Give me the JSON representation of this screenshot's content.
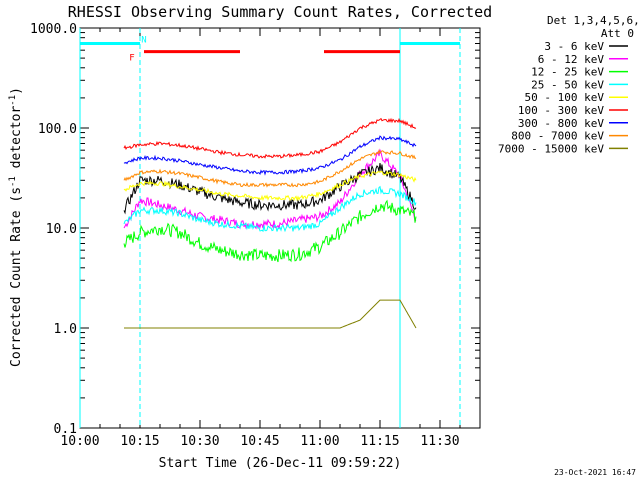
{
  "chart_data": {
    "type": "line",
    "title": "RHESSI Observing Summary Count Rates, Corrected",
    "xlabel": "Start Time (26-Dec-11 09:59:22)",
    "ylabel_main": "Corrected Count Rate (s",
    "ylabel_sup1": "-1",
    "ylabel_mid": " detector",
    "ylabel_sup2": "-1",
    "ylabel_end": ")",
    "yscale": "log",
    "ylim": [
      0.1,
      1000
    ],
    "xlim_minutes": [
      0,
      100
    ],
    "x_ticks": [
      {
        "m": 0,
        "label": "10:00"
      },
      {
        "m": 15,
        "label": "10:15"
      },
      {
        "m": 30,
        "label": "10:30"
      },
      {
        "m": 45,
        "label": "10:45"
      },
      {
        "m": 60,
        "label": "11:00"
      },
      {
        "m": 75,
        "label": "11:15"
      },
      {
        "m": 90,
        "label": "11:30"
      }
    ],
    "y_ticks": [
      {
        "v": 1000,
        "label": "1000.0"
      },
      {
        "v": 100,
        "label": "100.0"
      },
      {
        "v": 10,
        "label": "10.0"
      },
      {
        "v": 1,
        "label": "1.0"
      },
      {
        "v": 0.1,
        "label": "0.1"
      }
    ],
    "legend_header": [
      "Det 1,3,4,5,6,9,",
      "Att 0"
    ],
    "legend_position": "outside-right",
    "timestamp": "23-Oct-2021 16:47",
    "x_minutes": [
      11,
      15,
      20,
      25,
      30,
      35,
      40,
      45,
      50,
      55,
      60,
      65,
      70,
      75,
      80,
      84
    ],
    "series": [
      {
        "name": "3 - 6 keV",
        "color": "#000000",
        "noise": 0.12,
        "values": [
          15,
          30,
          30,
          27,
          23,
          20,
          18,
          17,
          17,
          17,
          19,
          26,
          34,
          40,
          32,
          16
        ]
      },
      {
        "name": "6 - 12 keV",
        "color": "#ff00ff",
        "noise": 0.1,
        "values": [
          10,
          19,
          17,
          15,
          13,
          12,
          11,
          11,
          11,
          12,
          13,
          18,
          35,
          55,
          33,
          12
        ]
      },
      {
        "name": "12 - 25 keV",
        "color": "#00ff00",
        "noise": 0.15,
        "values": [
          7,
          9,
          10,
          9,
          7,
          6,
          5.5,
          5.3,
          5.3,
          5.5,
          6.5,
          9,
          13,
          17,
          15,
          13
        ]
      },
      {
        "name": "25 - 50 keV",
        "color": "#00ffff",
        "noise": 0.08,
        "values": [
          11,
          15,
          15,
          14,
          12,
          11,
          10.5,
          10,
          10,
          10,
          11,
          16,
          22,
          24,
          22,
          18
        ]
      },
      {
        "name": "50 - 100 keV",
        "color": "#ffff00",
        "noise": 0.05,
        "values": [
          24,
          28,
          28,
          26,
          24,
          22,
          21,
          20,
          20,
          20,
          22,
          27,
          33,
          36,
          34,
          30
        ]
      },
      {
        "name": "100 - 300 keV",
        "color": "#ff0000",
        "noise": 0.04,
        "values": [
          63,
          68,
          70,
          67,
          62,
          57,
          54,
          52,
          52,
          54,
          58,
          72,
          100,
          120,
          118,
          100
        ]
      },
      {
        "name": "300 - 800 keV",
        "color": "#0000ff",
        "noise": 0.04,
        "values": [
          45,
          50,
          50,
          47,
          43,
          40,
          37,
          36,
          36,
          37,
          40,
          48,
          65,
          80,
          77,
          66
        ]
      },
      {
        "name": "800 - 7000 keV",
        "color": "#ff8800",
        "noise": 0.04,
        "values": [
          30,
          36,
          37,
          35,
          32,
          29,
          27,
          27,
          27,
          27,
          29,
          37,
          49,
          58,
          56,
          50
        ]
      },
      {
        "name": "7000 - 15000 keV",
        "color": "#808000",
        "noise": 0,
        "values": [
          1,
          1,
          1,
          1,
          1,
          1,
          1,
          1,
          1,
          1,
          1,
          1,
          1.2,
          1.9,
          1.9,
          1.0
        ]
      }
    ],
    "annotations": [
      {
        "label": "N",
        "color": "#00ffff",
        "type": "bar",
        "y": 700,
        "x0": 0,
        "x1": 15,
        "m_label": 16
      },
      {
        "label": "",
        "color": "#00ffff",
        "type": "bar",
        "y": 700,
        "x0": 80,
        "x1": 95
      },
      {
        "label": "F",
        "color": "#ff0000",
        "type": "bar",
        "y": 580,
        "x0": 16,
        "x1": 40,
        "m_label": 13
      },
      {
        "label": "",
        "color": "#ff0000",
        "type": "bar",
        "y": 580,
        "x0": 61,
        "x1": 80
      }
    ],
    "vlines": [
      {
        "m": 0,
        "color": "#00ffff",
        "dashed": false
      },
      {
        "m": 15,
        "color": "#00ffff",
        "dashed": true
      },
      {
        "m": 80,
        "color": "#00ffff",
        "dashed": false
      },
      {
        "m": 95,
        "color": "#00ffff",
        "dashed": true
      }
    ]
  }
}
